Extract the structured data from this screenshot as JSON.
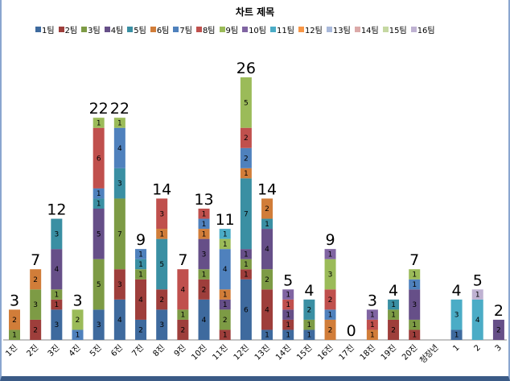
{
  "chart_data": {
    "type": "bar",
    "stacked": true,
    "title": "차트 제목",
    "legend_position": "top",
    "grid": false,
    "ylim": [
      0,
      27
    ],
    "categories": [
      "1진",
      "2진",
      "3진",
      "4진",
      "5진",
      "6진",
      "7진",
      "8진",
      "9진",
      "10진",
      "11진",
      "12진",
      "13진",
      "14진",
      "15진",
      "16진",
      "17진",
      "18진",
      "19진",
      "20진",
      "청장년",
      "1",
      "2",
      "3"
    ],
    "totals": [
      3,
      7,
      12,
      3,
      22,
      22,
      9,
      14,
      7,
      13,
      11,
      26,
      14,
      5,
      4,
      9,
      0,
      3,
      4,
      7,
      null,
      4,
      5,
      2
    ],
    "series": [
      {
        "name": "1팀",
        "color": "#3E6A9E",
        "values": [
          0,
          0,
          3,
          0,
          3,
          4,
          2,
          3,
          0,
          4,
          0,
          6,
          1,
          1,
          1,
          0,
          0,
          0,
          0,
          0,
          0,
          1,
          0,
          0
        ]
      },
      {
        "name": "2팀",
        "color": "#9E3E3B",
        "values": [
          0,
          2,
          1,
          0,
          0,
          3,
          4,
          2,
          2,
          2,
          1,
          1,
          4,
          1,
          0,
          0,
          0,
          0,
          2,
          1,
          0,
          0,
          0,
          0
        ]
      },
      {
        "name": "3팀",
        "color": "#7D9B45",
        "values": [
          1,
          3,
          1,
          0,
          5,
          7,
          1,
          0,
          1,
          1,
          2,
          1,
          2,
          0,
          1,
          0,
          0,
          0,
          1,
          1,
          0,
          0,
          0,
          0
        ]
      },
      {
        "name": "4팀",
        "color": "#664F88",
        "values": [
          0,
          0,
          4,
          0,
          5,
          0,
          0,
          0,
          0,
          3,
          1,
          1,
          4,
          1,
          0,
          0,
          0,
          0,
          0,
          3,
          0,
          0,
          0,
          2
        ]
      },
      {
        "name": "5팀",
        "color": "#3A8FA3",
        "values": [
          0,
          0,
          3,
          0,
          1,
          3,
          1,
          5,
          0,
          0,
          0,
          7,
          1,
          0,
          2,
          0,
          0,
          0,
          1,
          0,
          0,
          0,
          0,
          0
        ]
      },
      {
        "name": "6팀",
        "color": "#D17D39",
        "values": [
          2,
          2,
          0,
          0,
          0,
          0,
          0,
          1,
          0,
          1,
          1,
          1,
          2,
          0,
          0,
          2,
          0,
          1,
          0,
          0,
          0,
          0,
          0,
          0
        ]
      },
      {
        "name": "7팀",
        "color": "#4F81BD",
        "values": [
          0,
          0,
          0,
          1,
          1,
          4,
          1,
          0,
          0,
          1,
          4,
          2,
          0,
          0,
          0,
          1,
          0,
          0,
          0,
          1,
          0,
          0,
          0,
          0
        ]
      },
      {
        "name": "8팀",
        "color": "#C0504D",
        "values": [
          0,
          0,
          0,
          0,
          6,
          0,
          0,
          3,
          4,
          1,
          0,
          2,
          0,
          1,
          0,
          2,
          0,
          1,
          0,
          0,
          0,
          0,
          0,
          0
        ]
      },
      {
        "name": "9팀",
        "color": "#9BBB59",
        "values": [
          0,
          0,
          0,
          2,
          1,
          1,
          0,
          0,
          0,
          0,
          1,
          5,
          0,
          0,
          0,
          3,
          0,
          0,
          0,
          1,
          0,
          0,
          0,
          0
        ]
      },
      {
        "name": "10팀",
        "color": "#8064A2",
        "values": [
          0,
          0,
          0,
          0,
          0,
          0,
          0,
          0,
          0,
          0,
          0,
          0,
          0,
          1,
          0,
          1,
          0,
          1,
          0,
          0,
          0,
          0,
          0,
          0
        ]
      },
      {
        "name": "11팀",
        "color": "#4BACC6",
        "values": [
          0,
          0,
          0,
          0,
          0,
          0,
          0,
          0,
          0,
          0,
          1,
          0,
          0,
          0,
          0,
          0,
          0,
          0,
          0,
          0,
          0,
          3,
          4,
          0
        ]
      },
      {
        "name": "12팀",
        "color": "#F79646",
        "values": [
          0,
          0,
          0,
          0,
          0,
          0,
          0,
          0,
          0,
          0,
          0,
          0,
          0,
          0,
          0,
          0,
          0,
          0,
          0,
          0,
          0,
          0,
          0,
          0
        ]
      },
      {
        "name": "13팀",
        "color": "#A9B9DA",
        "values": [
          0,
          0,
          0,
          0,
          0,
          0,
          0,
          0,
          0,
          0,
          0,
          0,
          0,
          0,
          0,
          0,
          0,
          0,
          0,
          0,
          0,
          0,
          0,
          0
        ]
      },
      {
        "name": "14팀",
        "color": "#DBA9A8",
        "values": [
          0,
          0,
          0,
          0,
          0,
          0,
          0,
          0,
          0,
          0,
          0,
          0,
          0,
          0,
          0,
          0,
          0,
          0,
          0,
          0,
          0,
          0,
          0,
          0
        ]
      },
      {
        "name": "15팀",
        "color": "#C5D8A2",
        "values": [
          0,
          0,
          0,
          0,
          0,
          0,
          0,
          0,
          0,
          0,
          0,
          0,
          0,
          0,
          0,
          0,
          0,
          0,
          0,
          0,
          0,
          0,
          0,
          0
        ]
      },
      {
        "name": "16팀",
        "color": "#BFB2D2",
        "values": [
          0,
          0,
          0,
          0,
          0,
          0,
          0,
          0,
          0,
          0,
          0,
          0,
          0,
          0,
          0,
          0,
          0,
          0,
          0,
          0,
          0,
          0,
          1,
          0
        ]
      }
    ]
  }
}
